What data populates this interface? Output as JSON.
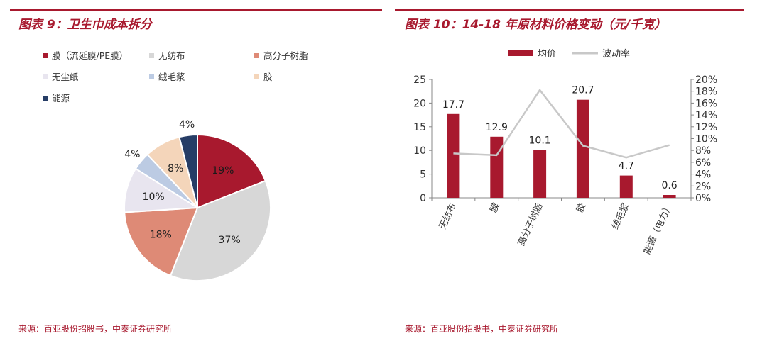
{
  "left": {
    "title": "图表 9：卫生巾成本拆分",
    "source": "来源：百亚股份招股书，中泰证券研究所"
  },
  "right": {
    "title": "图表 10：14-18 年原材料价格变动（元/千克）",
    "source": "来源：百亚股份招股书，中泰证券研究所"
  },
  "chart_data": [
    {
      "type": "pie",
      "title": "",
      "legend_position": "top-left",
      "slices": [
        {
          "label": "膜（流延膜/PE膜）",
          "value": 19,
          "display": "19%",
          "color": "#a8192e"
        },
        {
          "label": "无纺布",
          "value": 37,
          "display": "37%",
          "color": "#d7d7d7"
        },
        {
          "label": "高分子树脂",
          "value": 18,
          "display": "18%",
          "color": "#de8a76"
        },
        {
          "label": "无尘纸",
          "value": 10,
          "display": "10%",
          "color": "#e8e5ef"
        },
        {
          "label": "绒毛浆",
          "value": 4,
          "display": "4%",
          "color": "#bccbe3"
        },
        {
          "label": "胶",
          "value": 8,
          "display": "8%",
          "color": "#f4d5ba"
        },
        {
          "label": "能源",
          "value": 4,
          "display": "4%",
          "color": "#263d66"
        }
      ]
    },
    {
      "type": "bar",
      "title": "",
      "legend_position": "top",
      "categories": [
        "无纺布",
        "膜",
        "高分子树脂",
        "胶",
        "绒毛浆",
        "能源（电力）"
      ],
      "series": [
        {
          "name": "均价",
          "type": "bar",
          "axis": "left",
          "color": "#a8192e",
          "values": [
            17.7,
            12.9,
            10.1,
            20.7,
            4.7,
            0.6
          ],
          "labels": [
            "17.7",
            "12.9",
            "10.1",
            "20.7",
            "4.7",
            "0.6"
          ]
        },
        {
          "name": "波动率",
          "type": "line",
          "axis": "right",
          "color": "#c8c8c8",
          "values": [
            0.075,
            0.072,
            0.182,
            0.088,
            0.068,
            0.089
          ]
        }
      ],
      "yleft": {
        "min": 0,
        "max": 25,
        "ticks": [
          0,
          5,
          10,
          15,
          20,
          25
        ],
        "tick_labels": [
          "0",
          "5",
          "10",
          "15",
          "20",
          "25"
        ]
      },
      "yright": {
        "min": 0,
        "max": 0.2,
        "ticks": [
          0,
          0.02,
          0.04,
          0.06,
          0.08,
          0.1,
          0.12,
          0.14,
          0.16,
          0.18,
          0.2
        ],
        "tick_labels": [
          "0%",
          "2%",
          "4%",
          "6%",
          "8%",
          "10%",
          "12%",
          "14%",
          "16%",
          "18%",
          "20%"
        ]
      },
      "grid": false
    }
  ]
}
